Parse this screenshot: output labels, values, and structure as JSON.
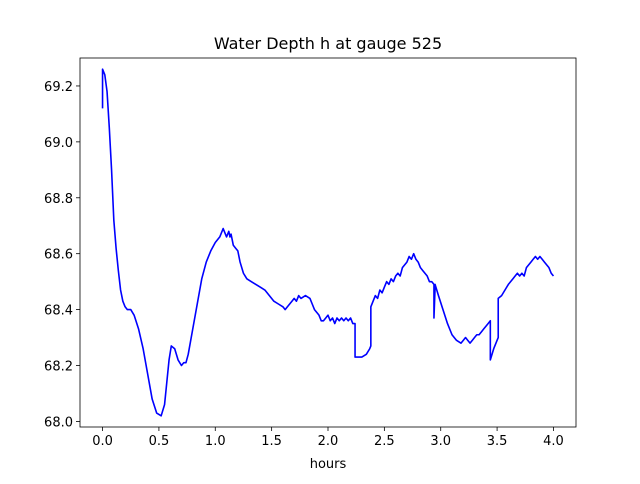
{
  "chart_data": {
    "type": "line",
    "title": "Water Depth h at gauge 525",
    "xlabel": "hours",
    "ylabel": "",
    "xlim": [
      -0.2,
      4.2
    ],
    "ylim": [
      67.98,
      69.3
    ],
    "grid": false,
    "legend": "none",
    "x_ticks": [
      0.0,
      0.5,
      1.0,
      1.5,
      2.0,
      2.5,
      3.0,
      3.5,
      4.0
    ],
    "x_tick_labels": [
      "0.0",
      "0.5",
      "1.0",
      "1.5",
      "2.0",
      "2.5",
      "3.0",
      "3.5",
      "4.0"
    ],
    "y_ticks": [
      68.0,
      68.2,
      68.4,
      68.6,
      68.8,
      69.0,
      69.2
    ],
    "y_tick_labels": [
      "68.0",
      "68.2",
      "68.4",
      "68.6",
      "68.8",
      "69.0",
      "69.2"
    ],
    "series": [
      {
        "color": "#0000ff",
        "x": [
          0.0,
          0.0,
          0.02,
          0.04,
          0.06,
          0.08,
          0.1,
          0.12,
          0.14,
          0.16,
          0.18,
          0.2,
          0.22,
          0.25,
          0.28,
          0.32,
          0.36,
          0.4,
          0.44,
          0.48,
          0.52,
          0.55,
          0.57,
          0.59,
          0.61,
          0.64,
          0.67,
          0.7,
          0.72,
          0.74,
          0.76,
          0.8,
          0.84,
          0.88,
          0.92,
          0.96,
          1.0,
          1.04,
          1.07,
          1.1,
          1.11,
          1.12,
          1.13,
          1.14,
          1.15,
          1.16,
          1.18,
          1.2,
          1.22,
          1.25,
          1.28,
          1.32,
          1.36,
          1.4,
          1.44,
          1.48,
          1.52,
          1.56,
          1.6,
          1.62,
          1.64,
          1.66,
          1.68,
          1.7,
          1.72,
          1.74,
          1.76,
          1.8,
          1.84,
          1.86,
          1.88,
          1.9,
          1.92,
          1.94,
          1.96,
          1.98,
          2.0,
          2.02,
          2.04,
          2.06,
          2.08,
          2.1,
          2.12,
          2.14,
          2.16,
          2.18,
          2.2,
          2.22,
          2.24,
          2.24,
          2.3,
          2.34,
          2.37,
          2.38,
          2.38,
          2.4,
          2.42,
          2.44,
          2.46,
          2.48,
          2.5,
          2.52,
          2.54,
          2.56,
          2.58,
          2.6,
          2.62,
          2.64,
          2.66,
          2.68,
          2.7,
          2.72,
          2.74,
          2.76,
          2.78,
          2.8,
          2.82,
          2.84,
          2.86,
          2.88,
          2.9,
          2.92,
          2.94,
          2.94,
          2.95,
          2.95,
          2.98,
          3.02,
          3.06,
          3.1,
          3.14,
          3.18,
          3.2,
          3.22,
          3.24,
          3.26,
          3.28,
          3.3,
          3.32,
          3.34,
          3.36,
          3.38,
          3.4,
          3.42,
          3.44,
          3.44,
          3.47,
          3.5,
          3.51,
          3.51,
          3.54,
          3.57,
          3.6,
          3.62,
          3.64,
          3.66,
          3.68,
          3.7,
          3.72,
          3.74,
          3.76,
          3.78,
          3.8,
          3.82,
          3.84,
          3.86,
          3.88,
          3.9,
          3.92,
          3.94,
          3.96,
          3.98,
          4.0
        ],
        "y": [
          69.12,
          69.26,
          69.24,
          69.18,
          69.05,
          68.9,
          68.72,
          68.62,
          68.54,
          68.47,
          68.43,
          68.41,
          68.4,
          68.4,
          68.38,
          68.33,
          68.26,
          68.17,
          68.08,
          68.03,
          68.02,
          68.06,
          68.14,
          68.22,
          68.27,
          68.26,
          68.22,
          68.2,
          68.21,
          68.21,
          68.24,
          68.33,
          68.42,
          68.51,
          68.57,
          68.61,
          68.64,
          68.66,
          68.69,
          68.66,
          68.67,
          68.68,
          68.66,
          68.67,
          68.65,
          68.63,
          68.62,
          68.61,
          68.57,
          68.53,
          68.51,
          68.5,
          68.49,
          68.48,
          68.47,
          68.45,
          68.43,
          68.42,
          68.41,
          68.4,
          68.41,
          68.42,
          68.43,
          68.44,
          68.43,
          68.45,
          68.44,
          68.45,
          68.44,
          68.42,
          68.4,
          68.39,
          68.38,
          68.36,
          68.36,
          68.37,
          68.38,
          68.36,
          68.37,
          68.35,
          68.37,
          68.36,
          68.37,
          68.36,
          68.37,
          68.36,
          68.37,
          68.35,
          68.35,
          68.23,
          68.23,
          68.24,
          68.26,
          68.27,
          68.41,
          68.43,
          68.45,
          68.44,
          68.47,
          68.46,
          68.48,
          68.5,
          68.49,
          68.51,
          68.5,
          68.52,
          68.53,
          68.52,
          68.55,
          68.56,
          68.57,
          68.59,
          68.58,
          68.6,
          68.58,
          68.57,
          68.55,
          68.54,
          68.53,
          68.52,
          68.5,
          68.5,
          68.49,
          68.37,
          68.48,
          68.49,
          68.45,
          68.4,
          68.35,
          68.31,
          68.29,
          68.28,
          68.29,
          68.3,
          68.29,
          68.28,
          68.29,
          68.3,
          68.31,
          68.31,
          68.32,
          68.33,
          68.34,
          68.35,
          68.36,
          68.22,
          68.26,
          68.29,
          68.3,
          68.44,
          68.45,
          68.47,
          68.49,
          68.5,
          68.51,
          68.52,
          68.53,
          68.52,
          68.53,
          68.52,
          68.55,
          68.56,
          68.57,
          68.58,
          68.59,
          68.58,
          68.59,
          68.58,
          68.57,
          68.56,
          68.55,
          68.53,
          68.52
        ]
      }
    ]
  }
}
